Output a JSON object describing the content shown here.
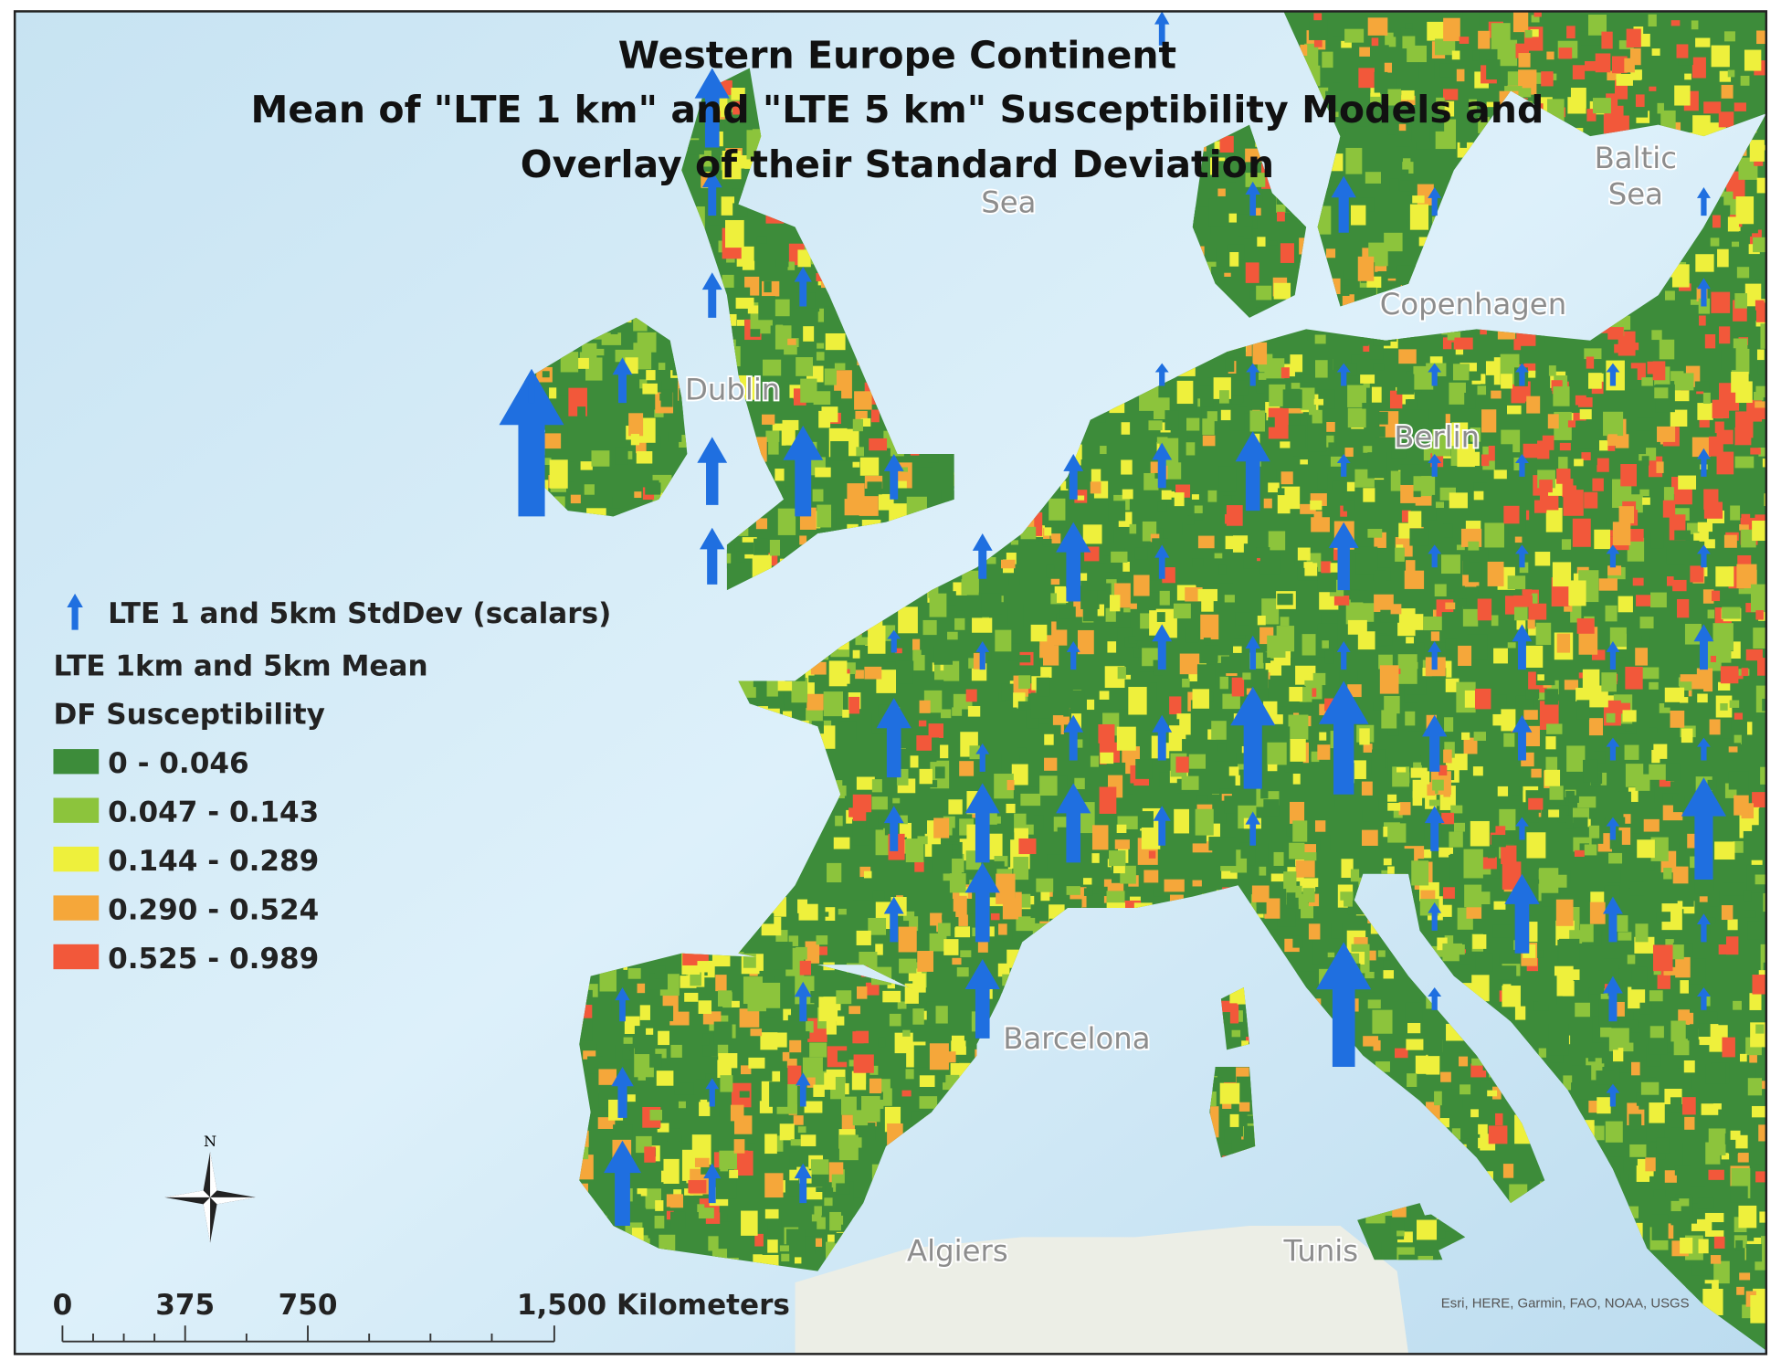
{
  "title": [
    "Western Europe Continent",
    "Mean of \"LTE 1 km\" and \"LTE 5 km\"  Susceptibility Models and",
    "Overlay of their Standard Deviation"
  ],
  "legend": {
    "arrow_label": "LTE 1 and 5km StdDev (scalars)",
    "heading": [
      "LTE 1km and 5km Mean",
      "DF Susceptibility"
    ],
    "classes": [
      {
        "label": "0 - 0.046",
        "color": "#3d8c3a"
      },
      {
        "label": "0.047 -  0.143",
        "color": "#8cc43c"
      },
      {
        "label": "0.144 -  0.289",
        "color": "#eef03c"
      },
      {
        "label": "0.290 -  0.524",
        "color": "#f5a73a"
      },
      {
        "label": "0.525 -  0.989",
        "color": "#f2583a"
      }
    ]
  },
  "arrow_color": "#1f6fe0",
  "scale_bar": [
    "0",
    "375",
    "750",
    "1,500 Kilometers"
  ],
  "north_arrow": "N",
  "place_labels": [
    "Dublin",
    "Copenhagen",
    "Berlin",
    "Barcelona",
    "Algiers",
    "Tunis",
    "Baltic",
    "Sea",
    "Sea"
  ],
  "attribution": "Esri, HERE, Garmin, FAO, NOAA, USGS"
}
